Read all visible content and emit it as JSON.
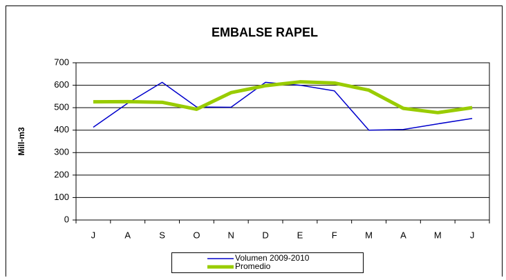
{
  "chart_data": {
    "type": "line",
    "title": "EMBALSE RAPEL",
    "y_label": "Mill-m3",
    "categories": [
      "J",
      "A",
      "S",
      "O",
      "N",
      "D",
      "E",
      "F",
      "M",
      "A",
      "M",
      "J"
    ],
    "series": [
      {
        "name": "Volumen  2009-2010",
        "color": "#0000cc",
        "values": [
          413,
          520,
          613,
          503,
          502,
          613,
          600,
          575,
          400,
          403,
          428,
          452
        ]
      },
      {
        "name": "Promedio",
        "color": "#99cc00",
        "values": [
          526,
          527,
          524,
          493,
          567,
          598,
          615,
          610,
          578,
          497,
          478,
          500
        ]
      }
    ],
    "ylim": [
      0,
      700
    ],
    "yticks": [
      0,
      100,
      200,
      300,
      400,
      500,
      600,
      700
    ],
    "grid": true
  }
}
